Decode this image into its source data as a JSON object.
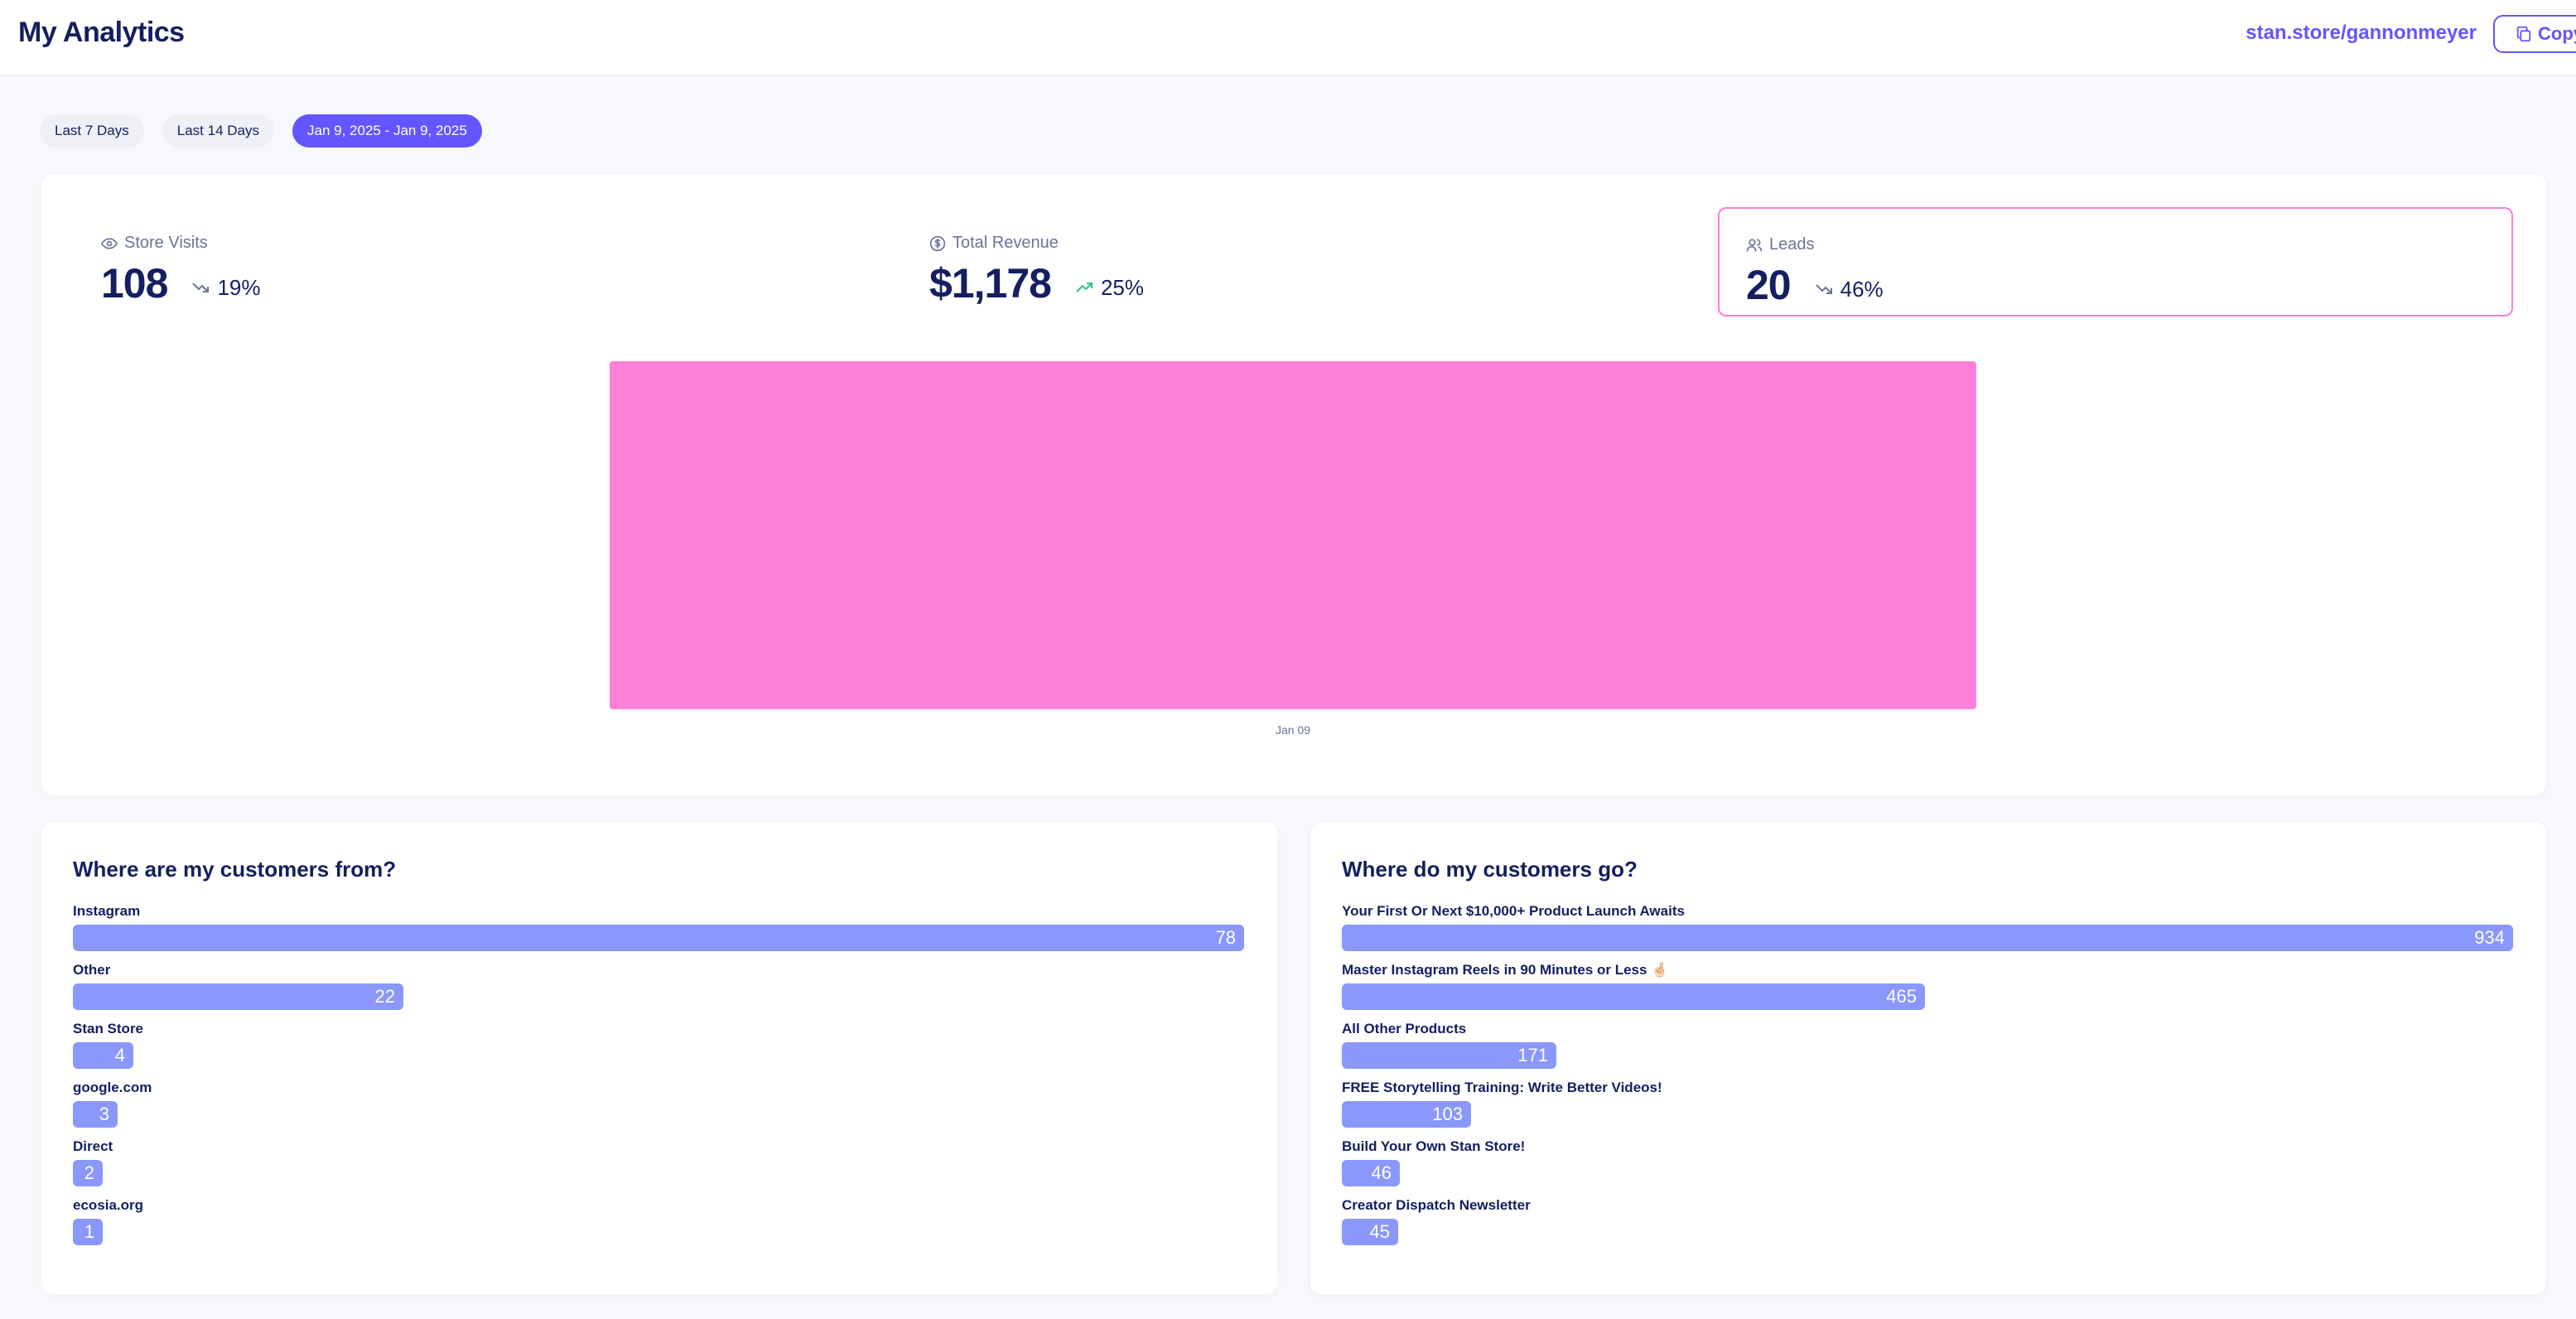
{
  "header": {
    "title": "My Analytics",
    "store_link": "stan.store/gannonmeyer",
    "copy_label": "Copy"
  },
  "colors": {
    "accent": "#6355ff",
    "chart_bar": "#ff80d9",
    "list_bar": "#8a98fb",
    "trend_up": "#2dbd8f",
    "highlight_border": "#ff7ed7"
  },
  "date_ranges": [
    {
      "label": "Last 7 Days",
      "active": false
    },
    {
      "label": "Last 14 Days",
      "active": false
    },
    {
      "label": "Jan 9, 2025 - Jan 9, 2025",
      "active": true
    }
  ],
  "stats": [
    {
      "icon": "eye-icon",
      "label": "Store Visits",
      "value": "108",
      "trend": "down",
      "change": "19%"
    },
    {
      "icon": "dollar-circle-icon",
      "label": "Total Revenue",
      "value": "$1,178",
      "trend": "up",
      "change": "25%"
    },
    {
      "icon": "users-icon",
      "label": "Leads",
      "value": "20",
      "trend": "down",
      "change": "46%",
      "selected": true
    }
  ],
  "chart_data": {
    "type": "bar",
    "categories": [
      "Jan 09"
    ],
    "series": [
      {
        "values": [
          20
        ]
      }
    ],
    "ylim": [
      0,
      20
    ],
    "grid": false,
    "title": "",
    "xlabel": "",
    "ylabel": ""
  },
  "sources": {
    "title": "Where are my customers from?",
    "items": [
      {
        "label": "Instagram",
        "value": 78
      },
      {
        "label": "Other",
        "value": 22
      },
      {
        "label": "Stan Store",
        "value": 4
      },
      {
        "label": "google.com",
        "value": 3
      },
      {
        "label": "Direct",
        "value": 2
      },
      {
        "label": "ecosia.org",
        "value": 1
      }
    ]
  },
  "destinations": {
    "title": "Where do my customers go?",
    "items": [
      {
        "label": "Your First Or Next $10,000+ Product Launch Awaits",
        "value": 934
      },
      {
        "label": "Master Instagram Reels in 90 Minutes or Less 🤞🏻",
        "value": 465
      },
      {
        "label": "All Other Products",
        "value": 171
      },
      {
        "label": "FREE Storytelling Training: Write Better Videos!",
        "value": 103
      },
      {
        "label": "Build Your Own Stan Store!",
        "value": 46
      },
      {
        "label": "Creator Dispatch Newsletter",
        "value": 45
      }
    ]
  }
}
